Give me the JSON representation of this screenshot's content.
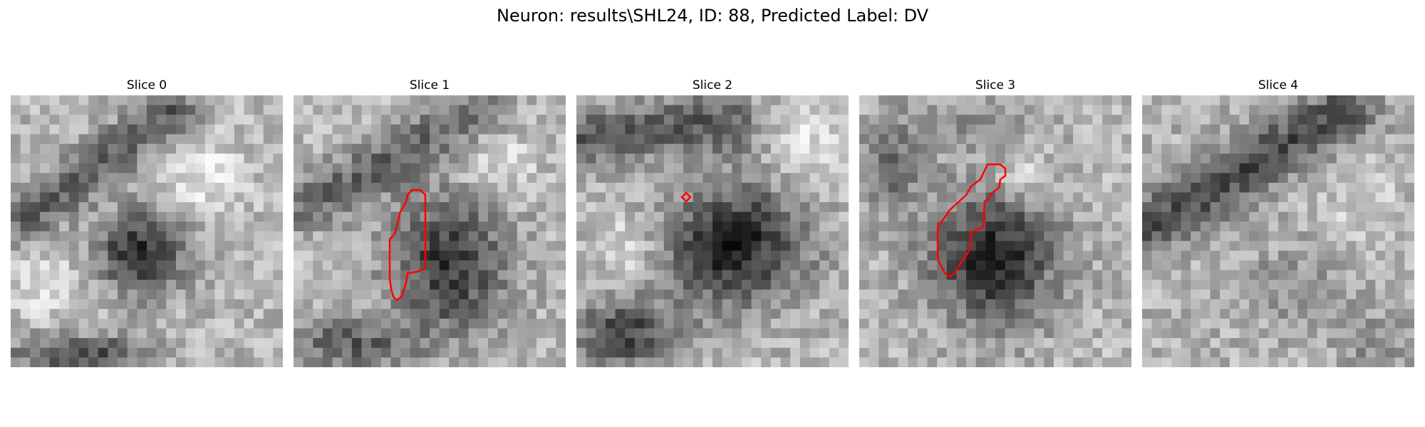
{
  "figure": {
    "title": "Neuron: results\\SHL24, ID: 88, Predicted Label: DV"
  },
  "panels": [
    {
      "title": "Slice 0"
    },
    {
      "title": "Slice 1"
    },
    {
      "title": "Slice 2"
    },
    {
      "title": "Slice 3"
    },
    {
      "title": "Slice 4"
    }
  ],
  "colors": {
    "contour": "#ff0000",
    "background": "#ffffff"
  }
}
